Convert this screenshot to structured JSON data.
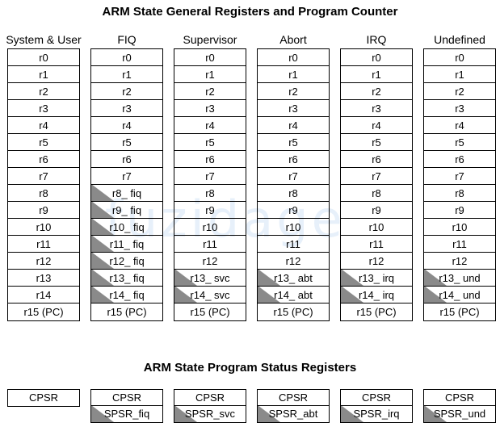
{
  "titles": {
    "registers": "ARM State General Registers and Program Counter",
    "psr": "ARM State Program Status Registers"
  },
  "watermark": "fuzidage",
  "modes": [
    {
      "name": "System & User",
      "registers": [
        {
          "label": "r0",
          "banked": false
        },
        {
          "label": "r1",
          "banked": false
        },
        {
          "label": "r2",
          "banked": false
        },
        {
          "label": "r3",
          "banked": false
        },
        {
          "label": "r4",
          "banked": false
        },
        {
          "label": "r5",
          "banked": false
        },
        {
          "label": "r6",
          "banked": false
        },
        {
          "label": "r7",
          "banked": false
        },
        {
          "label": "r8",
          "banked": false
        },
        {
          "label": "r9",
          "banked": false
        },
        {
          "label": "r10",
          "banked": false
        },
        {
          "label": "r11",
          "banked": false
        },
        {
          "label": "r12",
          "banked": false
        },
        {
          "label": "r13",
          "banked": false
        },
        {
          "label": "r14",
          "banked": false
        },
        {
          "label": "r15 (PC)",
          "banked": false
        }
      ],
      "psr": [
        {
          "label": "CPSR",
          "banked": false
        }
      ]
    },
    {
      "name": "FIQ",
      "registers": [
        {
          "label": "r0",
          "banked": false
        },
        {
          "label": "r1",
          "banked": false
        },
        {
          "label": "r2",
          "banked": false
        },
        {
          "label": "r3",
          "banked": false
        },
        {
          "label": "r4",
          "banked": false
        },
        {
          "label": "r5",
          "banked": false
        },
        {
          "label": "r6",
          "banked": false
        },
        {
          "label": "r7",
          "banked": false
        },
        {
          "label": "r8_ fiq",
          "banked": true
        },
        {
          "label": "r9_ fiq",
          "banked": true
        },
        {
          "label": "r10_ fiq",
          "banked": true
        },
        {
          "label": "r11_ fiq",
          "banked": true
        },
        {
          "label": "r12_ fiq",
          "banked": true
        },
        {
          "label": "r13_ fiq",
          "banked": true
        },
        {
          "label": "r14_ fiq",
          "banked": true
        },
        {
          "label": "r15 (PC)",
          "banked": false
        }
      ],
      "psr": [
        {
          "label": "CPSR",
          "banked": false
        },
        {
          "label": "SPSR_fiq",
          "banked": true
        }
      ]
    },
    {
      "name": "Supervisor",
      "registers": [
        {
          "label": "r0",
          "banked": false
        },
        {
          "label": "r1",
          "banked": false
        },
        {
          "label": "r2",
          "banked": false
        },
        {
          "label": "r3",
          "banked": false
        },
        {
          "label": "r4",
          "banked": false
        },
        {
          "label": "r5",
          "banked": false
        },
        {
          "label": "r6",
          "banked": false
        },
        {
          "label": "r7",
          "banked": false
        },
        {
          "label": "r8",
          "banked": false
        },
        {
          "label": "r9",
          "banked": false
        },
        {
          "label": "r10",
          "banked": false
        },
        {
          "label": "r11",
          "banked": false
        },
        {
          "label": "r12",
          "banked": false
        },
        {
          "label": "r13_ svc",
          "banked": true
        },
        {
          "label": "r14_ svc",
          "banked": true
        },
        {
          "label": "r15 (PC)",
          "banked": false
        }
      ],
      "psr": [
        {
          "label": "CPSR",
          "banked": false
        },
        {
          "label": "SPSR_svc",
          "banked": true
        }
      ]
    },
    {
      "name": "Abort",
      "registers": [
        {
          "label": "r0",
          "banked": false
        },
        {
          "label": "r1",
          "banked": false
        },
        {
          "label": "r2",
          "banked": false
        },
        {
          "label": "r3",
          "banked": false
        },
        {
          "label": "r4",
          "banked": false
        },
        {
          "label": "r5",
          "banked": false
        },
        {
          "label": "r6",
          "banked": false
        },
        {
          "label": "r7",
          "banked": false
        },
        {
          "label": "r8",
          "banked": false
        },
        {
          "label": "r9",
          "banked": false
        },
        {
          "label": "r10",
          "banked": false
        },
        {
          "label": "r11",
          "banked": false
        },
        {
          "label": "r12",
          "banked": false
        },
        {
          "label": "r13_ abt",
          "banked": true
        },
        {
          "label": "r14_ abt",
          "banked": true
        },
        {
          "label": "r15 (PC)",
          "banked": false
        }
      ],
      "psr": [
        {
          "label": "CPSR",
          "banked": false
        },
        {
          "label": "SPSR_abt",
          "banked": true
        }
      ]
    },
    {
      "name": "IRQ",
      "registers": [
        {
          "label": "r0",
          "banked": false
        },
        {
          "label": "r1",
          "banked": false
        },
        {
          "label": "r2",
          "banked": false
        },
        {
          "label": "r3",
          "banked": false
        },
        {
          "label": "r4",
          "banked": false
        },
        {
          "label": "r5",
          "banked": false
        },
        {
          "label": "r6",
          "banked": false
        },
        {
          "label": "r7",
          "banked": false
        },
        {
          "label": "r8",
          "banked": false
        },
        {
          "label": "r9",
          "banked": false
        },
        {
          "label": "r10",
          "banked": false
        },
        {
          "label": "r11",
          "banked": false
        },
        {
          "label": "r12",
          "banked": false
        },
        {
          "label": "r13_ irq",
          "banked": true
        },
        {
          "label": "r14_ irq",
          "banked": true
        },
        {
          "label": "r15 (PC)",
          "banked": false
        }
      ],
      "psr": [
        {
          "label": "CPSR",
          "banked": false
        },
        {
          "label": "SPSR_irq",
          "banked": true
        }
      ]
    },
    {
      "name": "Undefined",
      "registers": [
        {
          "label": "r0",
          "banked": false
        },
        {
          "label": "r1",
          "banked": false
        },
        {
          "label": "r2",
          "banked": false
        },
        {
          "label": "r3",
          "banked": false
        },
        {
          "label": "r4",
          "banked": false
        },
        {
          "label": "r5",
          "banked": false
        },
        {
          "label": "r6",
          "banked": false
        },
        {
          "label": "r7",
          "banked": false
        },
        {
          "label": "r8",
          "banked": false
        },
        {
          "label": "r9",
          "banked": false
        },
        {
          "label": "r10",
          "banked": false
        },
        {
          "label": "r11",
          "banked": false
        },
        {
          "label": "r12",
          "banked": false
        },
        {
          "label": "r13_ und",
          "banked": true
        },
        {
          "label": "r14_ und",
          "banked": true
        },
        {
          "label": "r15 (PC)",
          "banked": false
        }
      ],
      "psr": [
        {
          "label": "CPSR",
          "banked": false
        },
        {
          "label": "SPSR_und",
          "banked": true
        }
      ]
    }
  ]
}
